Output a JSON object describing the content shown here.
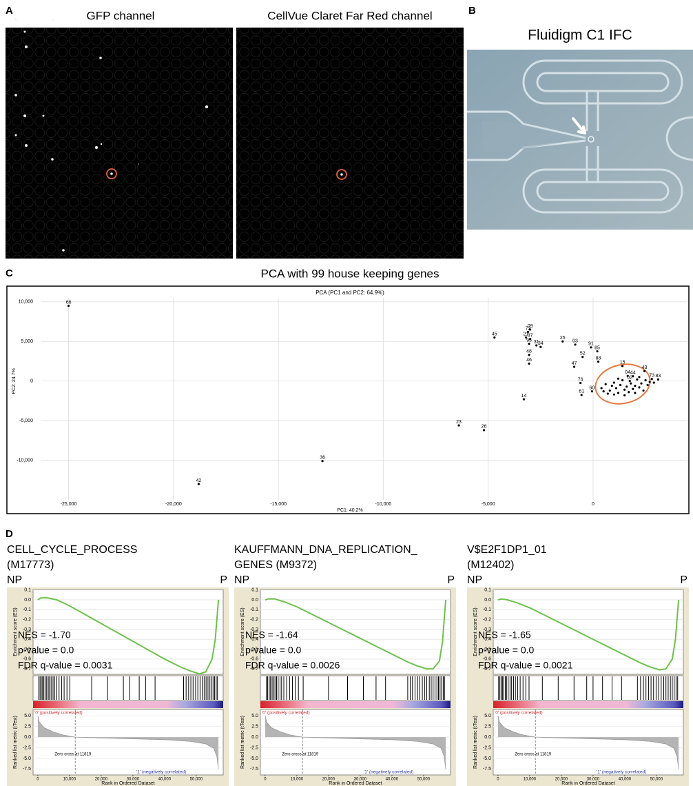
{
  "panel_a": {
    "label": "A",
    "left_title": "GFP channel",
    "right_title": "CellVue Claret Far Red channel"
  },
  "panel_b": {
    "label": "B",
    "title": "Fluidigm C1 IFC"
  },
  "panel_c": {
    "label": "C",
    "title": "PCA with 99 house keeping genes",
    "chart": {
      "type": "scatter",
      "title": "PCA (PC1 and PC2: 64.9%)",
      "x_label": "PC1: 40.2%",
      "y_label": "PC2: 24.7%",
      "xlim": [
        -26300,
        4500
      ],
      "ylim": [
        -15000,
        10500
      ],
      "xticks": [
        {
          "value": -25000,
          "label": "-25,000"
        },
        {
          "value": -20000,
          "label": "-20,000"
        },
        {
          "value": -15000,
          "label": "-15,000"
        },
        {
          "value": -10000,
          "label": "-10,000"
        },
        {
          "value": -5000,
          "label": "-5,000"
        },
        0
      ],
      "yticks": [
        {
          "value": 10000,
          "label": "10,000"
        },
        {
          "value": 5000,
          "label": "5,000"
        },
        0,
        {
          "value": -5000,
          "label": "-5,000"
        },
        {
          "value": -10000,
          "label": "-10,000"
        }
      ],
      "grid": true,
      "color": "#000000",
      "x": [
        -25000,
        -18800,
        -12900,
        -6400,
        -5200,
        -3300,
        -4700,
        -3100,
        -3200,
        -3050,
        -3000,
        -3000,
        -2700,
        -2500,
        -3050,
        -3050,
        -1450,
        -850,
        -900,
        -500,
        -100,
        200,
        250,
        1400,
        2450,
        3100,
        2800,
        -600,
        -550,
        -50,
        1750,
        1900,
        1650,
        400,
        600,
        800,
        900,
        1000,
        1100,
        1200,
        1300,
        1400,
        1500,
        1600,
        1700,
        1800,
        1900,
        2000,
        2100,
        2200,
        2300,
        2400,
        2500,
        2600,
        2700,
        2200,
        1200,
        700,
        1500,
        2000,
        2900,
        500,
        1000
      ],
      "y": [
        9500,
        -13000,
        -10100,
        -5600,
        -6200,
        -2300,
        5500,
        6200,
        5500,
        4700,
        6500,
        5300,
        4500,
        4300,
        3300,
        2200,
        5000,
        4600,
        1800,
        3050,
        4250,
        3750,
        2450,
        1900,
        1250,
        200,
        250,
        -250,
        -1750,
        -1300,
        0,
        600,
        650,
        -900,
        -400,
        -1200,
        -600,
        -200,
        -900,
        -1500,
        -500,
        100,
        -1100,
        -700,
        -1400,
        -300,
        -1000,
        -600,
        200,
        -800,
        -300,
        -1200,
        100,
        -500,
        -100,
        500,
        300,
        -1600,
        -1800,
        -1500,
        -200,
        -1300,
        -1700
      ],
      "point_labels": [
        "66",
        "42",
        "36",
        "23",
        "26",
        "14",
        "45",
        "72",
        "21",
        "93",
        "09",
        "37",
        "31",
        "34",
        "48",
        "46",
        "25",
        "03",
        "47",
        "52",
        "91",
        "85",
        "88",
        "15",
        "43",
        "83",
        "73",
        "76",
        "61",
        "60",
        "02",
        "44",
        "04",
        null,
        null,
        null,
        null,
        null,
        null,
        null,
        null,
        null,
        null,
        null,
        null,
        null,
        null,
        null,
        null,
        null,
        null,
        null,
        null,
        null,
        null,
        null,
        null,
        null,
        null,
        null,
        null,
        null,
        null
      ]
    }
  },
  "panel_d": {
    "label": "D",
    "left_end": "NP",
    "right_end": "P",
    "axes": {
      "es_label": "Enrichment score (ES)",
      "es_ylim": [
        -0.755,
        0.105
      ],
      "es_yticks": [
        0.1,
        {
          "value": 0,
          "label": "0.0"
        },
        -0.1,
        -0.2,
        -0.3,
        -0.4,
        -0.5,
        -0.6,
        -0.7
      ],
      "metric_label": "Ranked list metric (tTest)",
      "metric_ylim": [
        -8.9,
        6.5
      ],
      "metric_yticks": [
        {
          "value": 5,
          "label": "5.0"
        },
        2.5,
        {
          "value": 0,
          "label": "0.0"
        },
        -2.5,
        {
          "value": -5,
          "label": "-5.0"
        },
        -7.5
      ],
      "xlim": [
        -1500,
        58500
      ],
      "xticks": [
        0,
        {
          "value": 10000,
          "label": "10,000"
        },
        {
          "value": 20000,
          "label": "20,000"
        },
        {
          "value": 30000,
          "label": "30,000"
        },
        {
          "value": 40000,
          "label": "40,000"
        },
        {
          "value": 50000,
          "label": "50,000"
        }
      ],
      "x_label": "Rank in Ordered Dataset",
      "pos_label": "'0' (positively correlated)",
      "neg_label": "'1' (negatively correlated)",
      "zero_cross": 11819,
      "zero_cross_label": "Zero cross at 11819",
      "metric_x": [
        0,
        500,
        2000,
        5000,
        8000,
        11819,
        20000,
        30000,
        40000,
        48000,
        53000,
        55500,
        56500,
        57000
      ],
      "metric_y": [
        5.0,
        3.5,
        2.2,
        1.2,
        0.5,
        0,
        -0.2,
        -0.4,
        -0.6,
        -1.0,
        -1.6,
        -2.6,
        -4.5,
        -7.5
      ]
    },
    "plots": [
      {
        "title_lines": [
          "CELL_CYCLE_PROCESS",
          "(M17773)"
        ],
        "stats": [
          "NES = -1.70",
          "p-value = 0.0",
          "FDR q-value = 0.0031"
        ],
        "es_x": [
          0,
          1000,
          3000,
          6000,
          10000,
          15000,
          20000,
          25000,
          30000,
          35000,
          40000,
          45000,
          48000,
          51000,
          53000,
          55000,
          56000,
          56500,
          57000
        ],
        "es_y": [
          0,
          0.02,
          0.02,
          0,
          -0.06,
          -0.15,
          -0.24,
          -0.33,
          -0.42,
          -0.51,
          -0.6,
          -0.68,
          -0.72,
          -0.75,
          -0.73,
          -0.6,
          -0.4,
          -0.2,
          0
        ],
        "hits": [
          300,
          700,
          1100,
          1500,
          1900,
          2300,
          2800,
          3300,
          3700,
          4200,
          4800,
          5300,
          6000,
          6700,
          7500,
          8300,
          9200,
          10100,
          17000,
          22000,
          27000,
          29000,
          32000,
          34000,
          37000,
          46000,
          46800,
          47600,
          48300,
          49000,
          49800,
          50500,
          51200,
          51900,
          52500,
          53100,
          53700,
          54300,
          54800,
          55300,
          55800,
          56300,
          56700
        ]
      },
      {
        "title_lines": [
          "KAUFFMANN_DNA_REPLICATION_",
          "GENES (M9372)"
        ],
        "stats": [
          "NES = -1.64",
          "p-value = 0.0",
          "FDR q-value = 0.0026"
        ],
        "es_x": [
          0,
          1000,
          3000,
          6000,
          10000,
          15000,
          20000,
          25000,
          30000,
          35000,
          40000,
          45000,
          48000,
          51000,
          53000,
          55000,
          56000,
          56500,
          57000
        ],
        "es_y": [
          0,
          0.01,
          0.01,
          -0.02,
          -0.07,
          -0.15,
          -0.23,
          -0.31,
          -0.39,
          -0.47,
          -0.55,
          -0.63,
          -0.67,
          -0.7,
          -0.7,
          -0.62,
          -0.42,
          -0.2,
          0
        ],
        "hits": [
          400,
          800,
          1300,
          1700,
          2200,
          2700,
          3100,
          3600,
          4100,
          4700,
          5200,
          5900,
          6800,
          7700,
          8600,
          9500,
          10500,
          12000,
          20000,
          26000,
          31000,
          35000,
          38000,
          45000,
          45800,
          46500,
          47300,
          48100,
          48800,
          49600,
          50300,
          51000,
          51800,
          52400,
          53000,
          53600,
          54200,
          54700,
          55200,
          55700,
          56200,
          56600
        ]
      },
      {
        "title_lines": [
          "V$E2F1DP1_01",
          "(M12402)"
        ],
        "stats": [
          "NES = -1.65",
          "p-value = 0.0",
          "FDR q-value = 0.0021"
        ],
        "es_x": [
          0,
          1000,
          3000,
          6000,
          10000,
          15000,
          20000,
          25000,
          30000,
          35000,
          40000,
          45000,
          48000,
          51000,
          53000,
          55000,
          56000,
          56500,
          57000
        ],
        "es_y": [
          0,
          0.01,
          0.0,
          -0.03,
          -0.08,
          -0.16,
          -0.24,
          -0.32,
          -0.4,
          -0.48,
          -0.56,
          -0.64,
          -0.68,
          -0.71,
          -0.7,
          -0.6,
          -0.4,
          -0.2,
          0
        ],
        "hits": [
          200,
          600,
          1000,
          1400,
          1800,
          2300,
          2700,
          3200,
          3800,
          4300,
          4900,
          5500,
          6200,
          7000,
          7900,
          8800,
          9800,
          14000,
          19000,
          24000,
          28000,
          30000,
          33000,
          36000,
          39000,
          44000,
          45000,
          45900,
          46700,
          47500,
          48300,
          49100,
          49900,
          50700,
          51500,
          52300,
          53000,
          53700,
          54400,
          55000,
          55600,
          56200,
          56700
        ]
      }
    ]
  }
}
